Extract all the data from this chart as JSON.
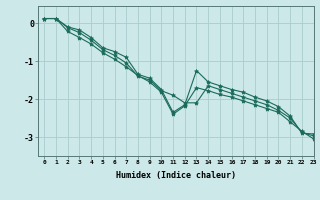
{
  "title": "",
  "xlabel": "Humidex (Indice chaleur)",
  "ylabel": "",
  "bg_color": "#cce8e8",
  "grid_color": "#aacccc",
  "line_color": "#1a6b5a",
  "xlim": [
    -0.5,
    23
  ],
  "ylim": [
    -3.5,
    0.45
  ],
  "yticks": [
    0,
    -1,
    -2,
    -3
  ],
  "xticks": [
    0,
    1,
    2,
    3,
    4,
    5,
    6,
    7,
    8,
    9,
    10,
    11,
    12,
    13,
    14,
    15,
    16,
    17,
    18,
    19,
    20,
    21,
    22,
    23
  ],
  "series": [
    [
      0.12,
      0.12,
      -0.1,
      -0.18,
      -0.38,
      -0.65,
      -0.75,
      -0.9,
      -1.35,
      -1.45,
      -1.75,
      -2.35,
      -2.15,
      -1.25,
      -1.55,
      -1.65,
      -1.75,
      -1.82,
      -1.95,
      -2.05,
      -2.2,
      -2.45,
      -2.9,
      -2.92
    ],
    [
      0.12,
      0.12,
      -0.22,
      -0.38,
      -0.55,
      -0.78,
      -0.95,
      -1.15,
      -1.38,
      -1.55,
      -1.82,
      -2.4,
      -2.18,
      -1.7,
      -1.78,
      -1.88,
      -1.95,
      -2.05,
      -2.15,
      -2.25,
      -2.35,
      -2.6,
      -2.85,
      -3.05
    ],
    [
      0.12,
      0.12,
      -0.12,
      -0.25,
      -0.45,
      -0.7,
      -0.85,
      -1.05,
      -1.4,
      -1.5,
      -1.78,
      -1.9,
      -2.1,
      -2.1,
      -1.65,
      -1.75,
      -1.85,
      -1.95,
      -2.05,
      -2.15,
      -2.3,
      -2.5,
      -2.88,
      -2.97
    ]
  ],
  "figsize": [
    3.2,
    2.0
  ],
  "dpi": 100
}
